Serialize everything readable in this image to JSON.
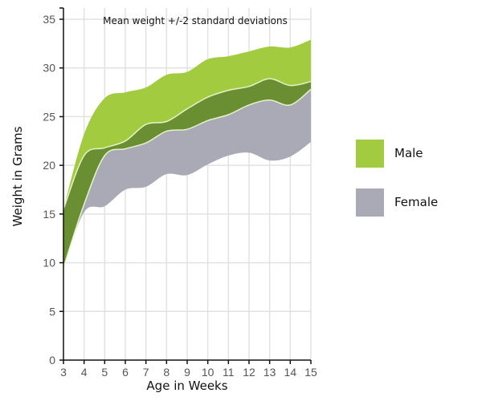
{
  "chart_data": {
    "type": "area",
    "title": "Mean weight +/-2 standard deviations",
    "xlabel": "Age in Weeks",
    "ylabel": "Weight in Grams",
    "xlim": [
      3,
      15
    ],
    "ylim": [
      0,
      35
    ],
    "grid": true,
    "legend_position": "right",
    "x": [
      3,
      4,
      5,
      6,
      7,
      8,
      9,
      10,
      11,
      12,
      13,
      14,
      15
    ],
    "x_ticks": [
      "3",
      "4",
      "5",
      "6",
      "7",
      "8",
      "9",
      "10",
      "11",
      "12",
      "13",
      "14",
      "15"
    ],
    "y_ticks": [
      "0",
      "5",
      "10",
      "15",
      "20",
      "25",
      "30",
      "35"
    ],
    "y_tick_values": [
      0,
      5,
      10,
      15,
      20,
      25,
      30,
      35
    ],
    "series": [
      {
        "name": "Male",
        "color": "#a2cb3f",
        "upper": [
          15.5,
          23.2,
          26.9,
          27.5,
          28.0,
          29.3,
          29.6,
          30.9,
          31.2,
          31.7,
          32.2,
          32.1,
          32.9
        ],
        "lower": [
          9.5,
          16.0,
          21.0,
          21.7,
          22.3,
          23.5,
          23.7,
          24.6,
          25.2,
          26.2,
          26.7,
          26.2,
          27.8
        ]
      },
      {
        "name": "Female",
        "color": "#a9aab5",
        "upper": [
          15.5,
          21.0,
          21.8,
          22.5,
          24.2,
          24.5,
          25.8,
          27.0,
          27.7,
          28.1,
          28.9,
          28.2,
          28.6
        ],
        "lower": [
          9.5,
          15.2,
          15.8,
          17.5,
          17.8,
          19.1,
          19.0,
          20.1,
          21.0,
          21.3,
          20.5,
          20.9,
          22.4
        ]
      }
    ],
    "overlap_color": "#6a8f33"
  },
  "legend": {
    "items": [
      {
        "label": "Male",
        "color": "#a2cb3f"
      },
      {
        "label": "Female",
        "color": "#a9aab5"
      }
    ]
  }
}
